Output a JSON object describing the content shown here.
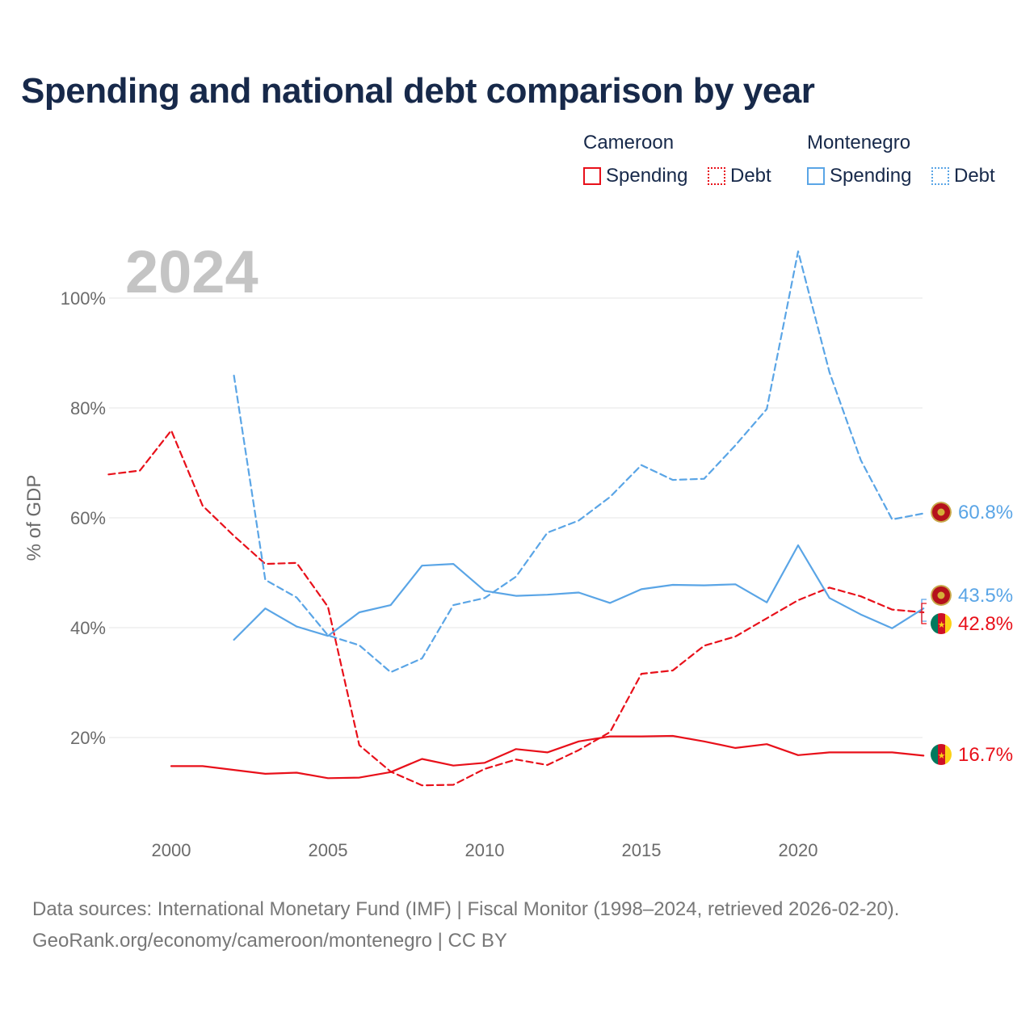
{
  "title": "Spending and national debt comparison by year",
  "legend": {
    "groups": [
      {
        "country": "Cameroon",
        "spending": "Spending",
        "debt": "Debt"
      },
      {
        "country": "Montenegro",
        "spending": "Spending",
        "debt": "Debt"
      }
    ]
  },
  "year_watermark": "2024",
  "sources": {
    "line1": "Data sources: International Monetary Fund (IMF) | Fiscal Monitor (1998–2024, retrieved 2026-02-20).",
    "line2": "GeoRank.org/economy/cameroon/montenegro | CC BY"
  },
  "colors": {
    "cameroon": "#e8101a",
    "montenegro": "#5aa5e6",
    "title": "#17294a",
    "watermark": "#c4c4c4"
  },
  "chart_data": {
    "type": "line",
    "title": "Spending and national debt comparison by year",
    "xlabel": "",
    "ylabel": "% of GDP",
    "xlim": [
      1998,
      2024
    ],
    "ylim": [
      3,
      112
    ],
    "xticks": [
      2000,
      2005,
      2010,
      2015,
      2020
    ],
    "yticks": [
      20,
      40,
      60,
      80,
      100
    ],
    "ytick_labels": [
      "20%",
      "40%",
      "60%",
      "80%",
      "100%"
    ],
    "legend_position": "top-right",
    "series": [
      {
        "name": "Cameroon Spending",
        "country": "Cameroon",
        "style": "solid",
        "color": "#e8101a",
        "x": [
          2000,
          2001,
          2002,
          2003,
          2004,
          2005,
          2006,
          2007,
          2008,
          2009,
          2010,
          2011,
          2012,
          2013,
          2014,
          2015,
          2016,
          2017,
          2018,
          2019,
          2020,
          2021,
          2022,
          2023,
          2024
        ],
        "values": [
          14.8,
          14.8,
          14.1,
          13.4,
          13.6,
          12.6,
          12.7,
          13.7,
          16.1,
          14.9,
          15.4,
          17.9,
          17.3,
          19.3,
          20.2,
          20.2,
          20.3,
          19.3,
          18.1,
          18.8,
          16.8,
          17.3,
          17.3,
          17.3,
          16.7
        ],
        "end_label": "16.7%"
      },
      {
        "name": "Cameroon Debt",
        "country": "Cameroon",
        "style": "dashed",
        "color": "#e8101a",
        "x": [
          1998,
          1999,
          2000,
          2001,
          2002,
          2003,
          2004,
          2005,
          2006,
          2007,
          2008,
          2009,
          2010,
          2011,
          2012,
          2013,
          2014,
          2015,
          2016,
          2017,
          2018,
          2019,
          2020,
          2021,
          2022,
          2023,
          2024
        ],
        "values": [
          67.9,
          68.6,
          75.9,
          62.2,
          56.7,
          51.6,
          51.8,
          43.8,
          18.6,
          13.8,
          11.3,
          11.4,
          14.3,
          16.0,
          15.0,
          17.7,
          21.0,
          31.6,
          32.2,
          36.7,
          38.4,
          41.7,
          45.0,
          47.3,
          45.7,
          43.3,
          42.8
        ],
        "end_label": "42.8%"
      },
      {
        "name": "Montenegro Spending",
        "country": "Montenegro",
        "style": "solid",
        "color": "#5aa5e6",
        "x": [
          2002,
          2003,
          2004,
          2005,
          2006,
          2007,
          2008,
          2009,
          2010,
          2011,
          2012,
          2013,
          2014,
          2015,
          2016,
          2017,
          2018,
          2019,
          2020,
          2021,
          2022,
          2023,
          2024
        ],
        "values": [
          37.8,
          43.5,
          40.2,
          38.5,
          42.8,
          44.1,
          51.3,
          51.6,
          46.7,
          45.8,
          46.0,
          46.4,
          44.5,
          47.0,
          47.8,
          47.7,
          47.9,
          44.6,
          55.0,
          45.4,
          42.4,
          39.9,
          43.5
        ],
        "end_label": "43.5%"
      },
      {
        "name": "Montenegro Debt",
        "country": "Montenegro",
        "style": "dashed",
        "color": "#5aa5e6",
        "x": [
          2002,
          2003,
          2004,
          2005,
          2006,
          2007,
          2008,
          2009,
          2010,
          2011,
          2012,
          2013,
          2014,
          2015,
          2016,
          2017,
          2018,
          2019,
          2020,
          2021,
          2022,
          2023,
          2024
        ],
        "values": [
          85.9,
          48.7,
          45.5,
          38.6,
          36.8,
          31.9,
          34.4,
          44.1,
          45.4,
          49.3,
          57.3,
          59.5,
          63.8,
          69.6,
          66.9,
          67.1,
          73.2,
          79.8,
          108.5,
          86.5,
          70.5,
          59.7,
          60.8
        ],
        "end_label": "60.8%"
      }
    ]
  }
}
